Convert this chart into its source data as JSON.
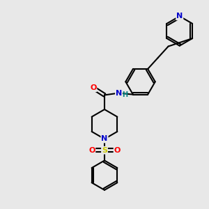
{
  "bg_color": "#e8e8e8",
  "bond_color": "#000000",
  "bond_width": 1.5,
  "atom_colors": {
    "N": "#0000cc",
    "O": "#ff0000",
    "S": "#cccc00",
    "H": "#008080",
    "C": "#000000"
  },
  "figsize": [
    3.0,
    3.0
  ],
  "dpi": 100
}
